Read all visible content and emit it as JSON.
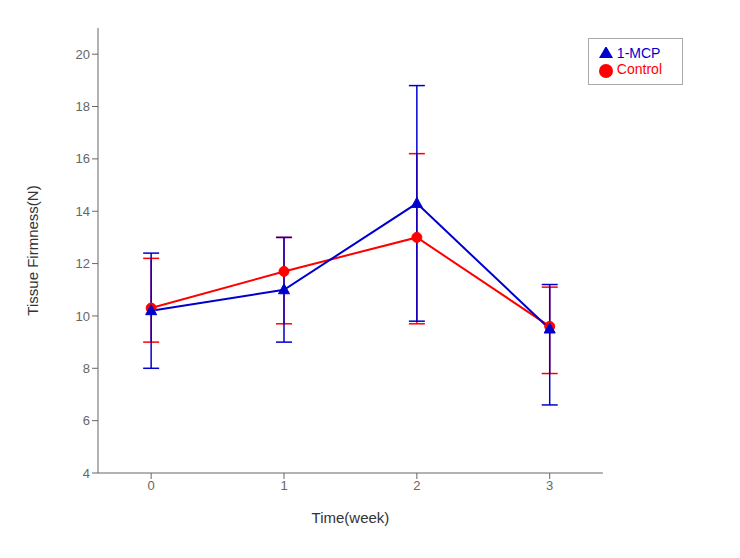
{
  "chart_data": {
    "type": "line",
    "xlabel": "Time(week)",
    "ylabel": "Tissue Firmness(N)",
    "x": [
      0,
      1,
      2,
      3
    ],
    "xlim": [
      -0.4,
      3.4
    ],
    "xticks": [
      0,
      1,
      2,
      3
    ],
    "ylim": [
      4,
      21
    ],
    "yticks": [
      4,
      6,
      8,
      10,
      12,
      14,
      16,
      18,
      20
    ],
    "grid": false,
    "legend": "upper right",
    "series": [
      {
        "name": "Control",
        "color": "#FF0000",
        "marker": "circle",
        "line_style": "solid",
        "values": [
          10.3,
          11.7,
          13.0,
          9.6
        ],
        "yerr_lower": [
          1.3,
          2.0,
          3.3,
          1.8
        ],
        "yerr_upper": [
          1.9,
          1.3,
          3.2,
          1.5
        ]
      },
      {
        "name": "1-MCP",
        "color": "#0000CD",
        "marker": "triangle",
        "line_style": "solid",
        "values": [
          10.2,
          11.0,
          14.3,
          9.5
        ],
        "yerr_lower": [
          2.2,
          2.0,
          4.5,
          2.9
        ],
        "yerr_upper": [
          2.2,
          2.0,
          4.5,
          1.7
        ]
      }
    ]
  }
}
